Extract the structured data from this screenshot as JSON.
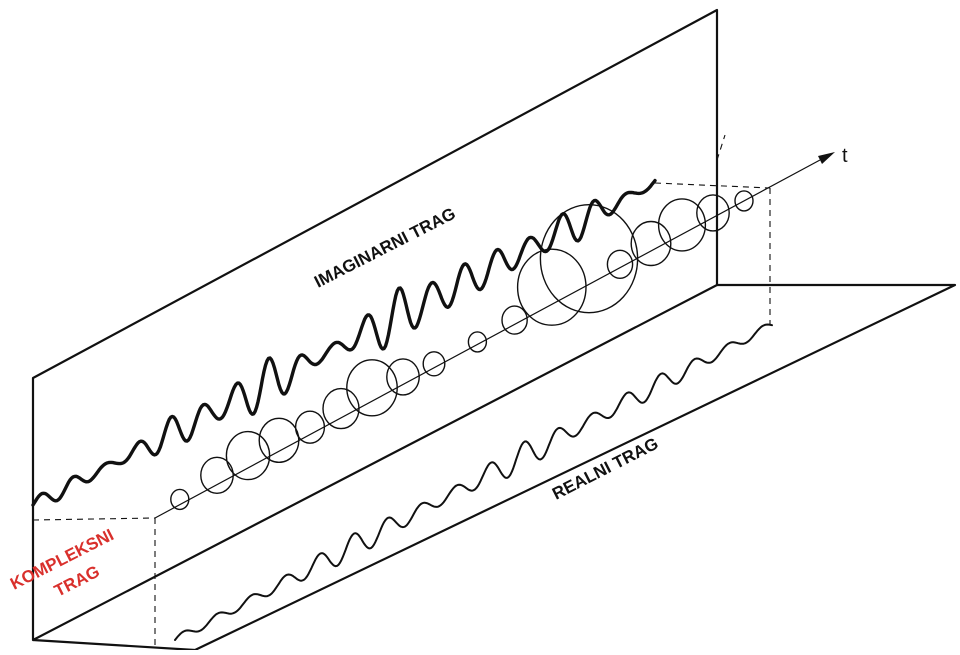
{
  "labels": {
    "imaginary": "IMAGINARNI TRAG",
    "real": "REALNI TRAG",
    "complex_line1": "KOMPLEKSNI",
    "complex_line2": "TRAG",
    "time_axis": "t"
  },
  "colors": {
    "ink": "#111111",
    "complex_label": "#d9302c",
    "background": "#ffffff"
  }
}
